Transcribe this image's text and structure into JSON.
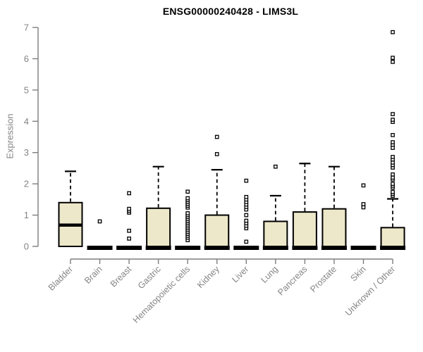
{
  "header": {
    "title": "ENSG00000240428 - LIMS3L"
  },
  "chart_data": {
    "type": "boxplot",
    "title": "ENSG00000240428 - LIMS3L",
    "xlabel": "",
    "ylabel": "Expression",
    "ylim": [
      0,
      7
    ],
    "yticks": [
      0,
      1,
      2,
      3,
      4,
      5,
      6,
      7
    ],
    "grid": false,
    "legend": "none",
    "categories": [
      "Bladder",
      "Brain",
      "Breast",
      "Gastric",
      "Hematopoietic cells",
      "Kidney",
      "Liver",
      "Lung",
      "Pancreas",
      "Prostate",
      "Skin",
      "Unknown / Other"
    ],
    "boxes": [
      {
        "category": "Bladder",
        "q1": 0,
        "median": 0.68,
        "q3": 1.4,
        "whisker_low": 0,
        "whisker_high": 2.4,
        "outliers": []
      },
      {
        "category": "Brain",
        "q1": 0,
        "median": 0,
        "q3": 0,
        "whisker_low": 0,
        "whisker_high": 0,
        "outliers": [
          0.8
        ]
      },
      {
        "category": "Breast",
        "q1": 0,
        "median": 0,
        "q3": 0,
        "whisker_low": 0,
        "whisker_high": 0,
        "outliers": [
          0.25,
          0.5,
          1.08,
          1.14,
          1.2,
          1.7
        ]
      },
      {
        "category": "Gastric",
        "q1": 0,
        "median": 0,
        "q3": 1.22,
        "whisker_low": 0,
        "whisker_high": 2.55,
        "outliers": []
      },
      {
        "category": "Hematopoietic cells",
        "q1": 0,
        "median": 0,
        "q3": 0,
        "whisker_low": 0,
        "whisker_high": 0,
        "outliers": [
          0.2,
          0.28,
          0.34,
          0.4,
          0.46,
          0.52,
          0.58,
          0.64,
          0.7,
          0.76,
          0.82,
          0.88,
          0.94,
          1.0,
          1.06,
          1.24,
          1.3,
          1.36,
          1.42,
          1.48,
          1.54,
          1.75
        ]
      },
      {
        "category": "Kidney",
        "q1": 0,
        "median": 0,
        "q3": 1.0,
        "whisker_low": 0,
        "whisker_high": 2.45,
        "outliers": [
          2.95,
          3.5
        ]
      },
      {
        "category": "Liver",
        "q1": 0,
        "median": 0,
        "q3": 0,
        "whisker_low": 0,
        "whisker_high": 0,
        "outliers": [
          0.15,
          0.58,
          0.66,
          0.74,
          0.82,
          1.0,
          1.18,
          1.26,
          1.34,
          1.42,
          1.5,
          1.58,
          2.1
        ]
      },
      {
        "category": "Lung",
        "q1": 0,
        "median": 0,
        "q3": 0.8,
        "whisker_low": 0,
        "whisker_high": 1.62,
        "outliers": [
          2.55
        ]
      },
      {
        "category": "Pancreas",
        "q1": 0,
        "median": 0,
        "q3": 1.1,
        "whisker_low": 0,
        "whisker_high": 2.65,
        "outliers": []
      },
      {
        "category": "Prostate",
        "q1": 0,
        "median": 0,
        "q3": 1.2,
        "whisker_low": 0,
        "whisker_high": 2.55,
        "outliers": []
      },
      {
        "category": "Skin",
        "q1": 0,
        "median": 0,
        "q3": 0,
        "whisker_low": 0,
        "whisker_high": 0,
        "outliers": [
          1.25,
          1.35,
          1.95
        ]
      },
      {
        "category": "Unknown / Other",
        "q1": 0,
        "median": 0,
        "q3": 0.6,
        "whisker_low": 0,
        "whisker_high": 1.52,
        "outliers": [
          1.62,
          1.68,
          1.74,
          1.88,
          1.94,
          2.0,
          2.14,
          2.2,
          2.3,
          2.52,
          2.6,
          2.68,
          2.78,
          2.86,
          3.15,
          3.25,
          3.33,
          3.56,
          3.98,
          4.05,
          4.23,
          5.9,
          6.03,
          6.85
        ]
      }
    ],
    "colors": {
      "box_fill": "#EDE8C9",
      "box_stroke": "#000000",
      "median": "#000000",
      "whisker": "#000000",
      "outlier_fill": "#FFFFFF",
      "outlier_stroke": "#000000",
      "axis_line": "#7E7E7E",
      "tick_text": "#858585",
      "title_text": "#000000",
      "background": "#FFFFFF"
    }
  }
}
